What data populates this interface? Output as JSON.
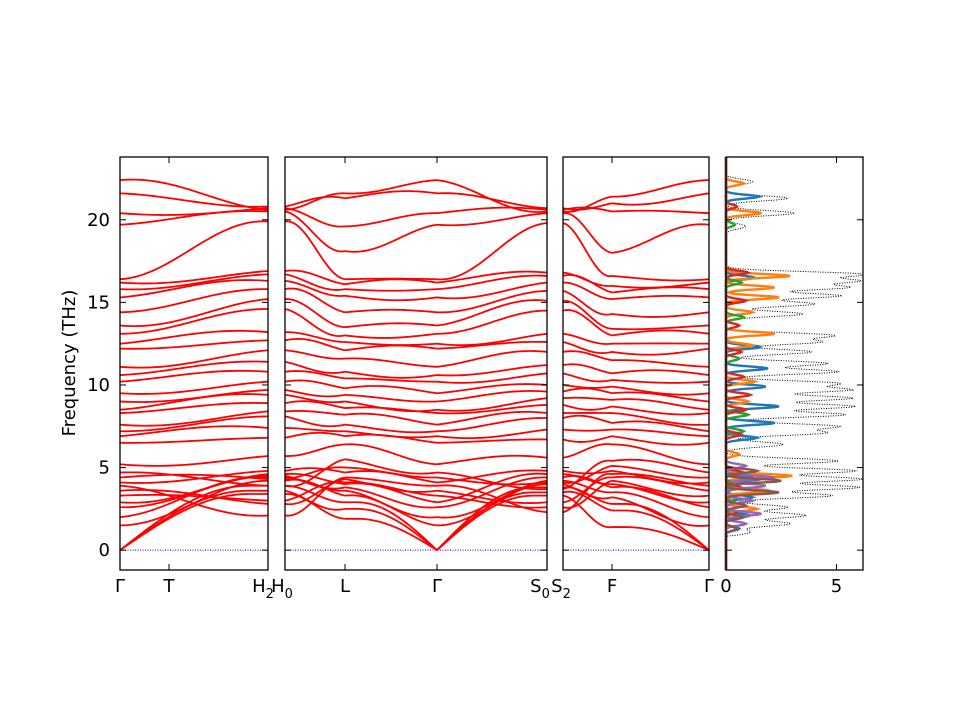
{
  "chart_data": {
    "type": "line",
    "title": "",
    "ylabel": "Frequency (THz)",
    "ylim": [
      -1.2,
      23.8
    ],
    "yticks": [
      0,
      5,
      10,
      15,
      20
    ],
    "band_color": "#ff0000",
    "zero_line_color": "#0000ff",
    "dos_total_color": "#000000",
    "panels": [
      {
        "segments": [
          {
            "x": [
              0,
              1
            ],
            "labels": [
              {
                "pos": 0,
                "text": "Γ"
              },
              {
                "pos": 0.33,
                "text": "T"
              }
            ]
          },
          {
            "x": [
              1,
              1
            ],
            "labels": [
              {
                "pos": 1,
                "text": "H",
                "sub": "2"
              }
            ]
          }
        ],
        "start_label": {
          "text": "Γ",
          "sub": ""
        },
        "mid_label": {
          "text": "T",
          "sub": ""
        },
        "end_label": {
          "text": "H",
          "sub": "2"
        }
      },
      {
        "start_label": {
          "text": "H",
          "sub": "0"
        },
        "mid_labels": [
          {
            "pos": 0.23,
            "text": "L"
          },
          {
            "pos": 0.58,
            "text": "Γ"
          }
        ],
        "end_label": {
          "text": "S",
          "sub": "0"
        }
      },
      {
        "start_label": {
          "text": "S",
          "sub": "2"
        },
        "mid_labels": [
          {
            "pos": 0.33,
            "text": "F"
          }
        ],
        "end_label": {
          "text": "Γ",
          "sub": ""
        }
      }
    ],
    "band_endpoints": {
      "gamma": [
        0,
        0,
        0,
        1.5,
        2.0,
        2.6,
        2.9,
        3.3,
        3.6,
        3.9,
        4.1,
        4.4,
        4.7,
        5.2,
        6.5,
        6.9,
        7.2,
        7.6,
        8.3,
        8.5,
        9.0,
        9.5,
        10.2,
        10.6,
        11.1,
        12.2,
        12.5,
        13.1,
        13.6,
        14.4,
        15.3,
        15.8,
        16.2,
        16.4,
        19.7,
        20.4,
        21.6,
        22.4
      ],
      "h": [
        3.4,
        3.6,
        3.9,
        4.2,
        4.4,
        4.5,
        4.6,
        3.0,
        2.8,
        2.1,
        4.8,
        4.3,
        3.9,
        5.7,
        6.8,
        7.4,
        8.1,
        8.4,
        8.9,
        9.4,
        9.7,
        10.2,
        10.8,
        11.4,
        12.1,
        12.7,
        13.2,
        14.6,
        15.2,
        15.8,
        16.3,
        16.7,
        16.9,
        19.9,
        20.5,
        20.7,
        20.8,
        20.6
      ],
      "l": [
        1.9,
        2.5,
        2.9,
        3.3,
        3.6,
        3.8,
        4.0,
        4.1,
        4.3,
        4.4,
        4.7,
        5.0,
        5.5,
        6.4,
        6.9,
        7.2,
        7.6,
        8.2,
        8.6,
        9.0,
        9.4,
        9.8,
        10.4,
        10.8,
        11.6,
        12.1,
        12.6,
        13.0,
        13.5,
        14.4,
        15.4,
        15.8,
        16.1,
        16.4,
        18.1,
        19.6,
        21.3,
        21.6
      ],
      "s": [
        3.3,
        3.5,
        3.8,
        4.0,
        4.2,
        4.4,
        4.6,
        2.6,
        2.9,
        2.3,
        4.8,
        4.1,
        3.7,
        5.6,
        6.7,
        7.3,
        8.0,
        8.3,
        8.8,
        9.2,
        9.6,
        10.0,
        10.7,
        11.2,
        12.0,
        12.6,
        13.1,
        14.5,
        15.1,
        15.7,
        16.2,
        16.6,
        16.8,
        19.8,
        20.4,
        20.6,
        20.7,
        20.5
      ],
      "f": [
        1.4,
        2.4,
        2.8,
        3.2,
        3.5,
        3.8,
        4.0,
        4.2,
        4.4,
        4.6,
        4.8,
        5.1,
        5.4,
        6.4,
        6.9,
        7.3,
        7.7,
        8.3,
        8.7,
        9.1,
        9.5,
        9.9,
        10.3,
        10.7,
        11.5,
        12.0,
        12.5,
        13.0,
        13.4,
        14.3,
        15.2,
        15.6,
        16.0,
        16.6,
        18.0,
        20.5,
        21.0,
        21.4
      ]
    },
    "dos": {
      "xlim": [
        0,
        6.2
      ],
      "xticks": [
        0,
        5
      ],
      "projected": [
        {
          "color": "#1f77b4",
          "peaks": [
            [
              21.4,
              1.5
            ],
            [
              16.5,
              1.3
            ],
            [
              12.3,
              1.6
            ],
            [
              11.0,
              1.9
            ],
            [
              9.9,
              1.8
            ],
            [
              8.7,
              2.4
            ],
            [
              7.7,
              2.2
            ],
            [
              6.8,
              1.4
            ],
            [
              4.3,
              1.6
            ],
            [
              3.2,
              1.2
            ],
            [
              2.1,
              1.1
            ],
            [
              1.3,
              0.6
            ]
          ]
        },
        {
          "color": "#ff7f0e",
          "peaks": [
            [
              22.2,
              0.8
            ],
            [
              20.4,
              1.6
            ],
            [
              16.6,
              2.9
            ],
            [
              15.9,
              2.2
            ],
            [
              15.3,
              2.4
            ],
            [
              14.4,
              1.2
            ],
            [
              13.1,
              2.2
            ],
            [
              12.4,
              1.2
            ],
            [
              10.2,
              1.3
            ],
            [
              9.0,
              1.0
            ],
            [
              5.8,
              0.6
            ],
            [
              4.5,
              3.0
            ],
            [
              3.6,
              2.0
            ],
            [
              2.5,
              1.4
            ]
          ]
        },
        {
          "color": "#2ca02c",
          "peaks": [
            [
              19.7,
              0.4
            ],
            [
              16.2,
              0.7
            ],
            [
              14.1,
              0.8
            ],
            [
              11.6,
              0.6
            ],
            [
              8.2,
              1.0
            ],
            [
              7.2,
              0.8
            ],
            [
              4.0,
              0.5
            ],
            [
              2.9,
              0.4
            ]
          ]
        },
        {
          "color": "#d62728",
          "peaks": [
            [
              20.8,
              0.5
            ],
            [
              16.8,
              1.0
            ],
            [
              15.1,
              0.9
            ],
            [
              13.6,
              0.6
            ],
            [
              12.0,
              0.7
            ],
            [
              10.5,
              0.8
            ],
            [
              9.4,
              1.1
            ],
            [
              8.5,
              0.9
            ],
            [
              7.0,
              0.7
            ],
            [
              4.7,
              0.8
            ],
            [
              3.8,
              0.7
            ],
            [
              2.3,
              0.5
            ]
          ]
        },
        {
          "color": "#9467bd",
          "peaks": [
            [
              5.1,
              0.9
            ],
            [
              4.4,
              2.2
            ],
            [
              3.9,
              1.8
            ],
            [
              3.0,
              1.2
            ],
            [
              2.2,
              1.6
            ],
            [
              1.6,
              0.9
            ]
          ]
        },
        {
          "color": "#8c564b",
          "peaks": [
            [
              4.8,
              1.4
            ],
            [
              4.2,
              2.5
            ],
            [
              3.5,
              2.4
            ],
            [
              2.7,
              0.9
            ],
            [
              2.0,
              0.8
            ],
            [
              1.3,
              0.5
            ]
          ]
        }
      ],
      "total_peaks": [
        [
          22.3,
          1.2
        ],
        [
          21.3,
          2.8
        ],
        [
          20.4,
          3.1
        ],
        [
          19.6,
          0.9
        ],
        [
          16.7,
          6.2
        ],
        [
          16.3,
          5.7
        ],
        [
          15.9,
          5.4
        ],
        [
          15.4,
          5.2
        ],
        [
          14.9,
          4.0
        ],
        [
          14.3,
          3.5
        ],
        [
          13.0,
          4.8
        ],
        [
          12.6,
          4.2
        ],
        [
          12.0,
          3.9
        ],
        [
          11.3,
          4.6
        ],
        [
          10.8,
          5.1
        ],
        [
          10.1,
          5.0
        ],
        [
          9.7,
          5.5
        ],
        [
          9.2,
          5.7
        ],
        [
          8.7,
          5.8
        ],
        [
          8.2,
          5.4
        ],
        [
          7.5,
          5.0
        ],
        [
          7.1,
          4.4
        ],
        [
          6.4,
          2.6
        ],
        [
          5.4,
          5.1
        ],
        [
          4.8,
          5.9
        ],
        [
          4.3,
          6.2
        ],
        [
          3.8,
          6.0
        ],
        [
          3.3,
          4.8
        ],
        [
          2.6,
          2.8
        ],
        [
          2.1,
          3.6
        ],
        [
          1.6,
          2.9
        ],
        [
          1.1,
          1.1
        ]
      ]
    }
  }
}
